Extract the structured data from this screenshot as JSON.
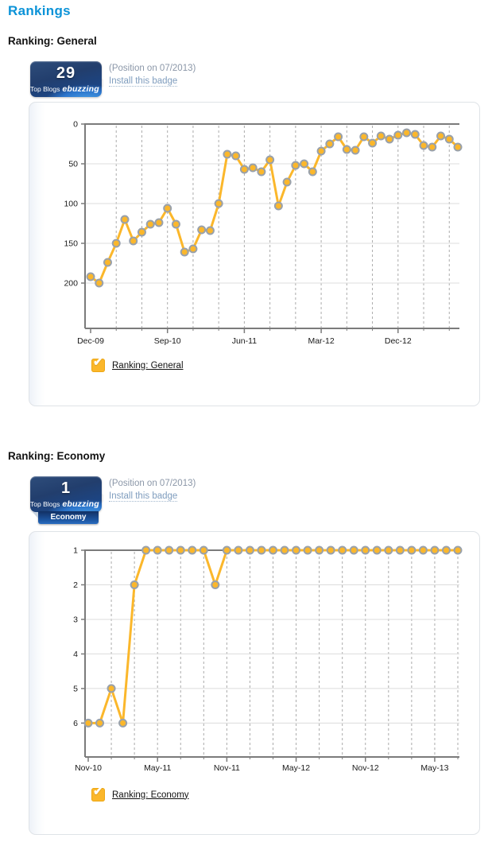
{
  "page": {
    "title": "Rankings"
  },
  "colors": {
    "title_blue": "#0c93d8",
    "line_orange": "#fbb72b",
    "marker_border": "#99a1ab",
    "axis_gray": "#7b7b7b",
    "grid_gray": "#dcdcdc",
    "dash_gray": "#ababab",
    "muted_text": "#8b97a8",
    "link_blue": "#7f9dbe",
    "badge_blue_dark": "#223e6d",
    "badge_blue_bright": "#2b74cb"
  },
  "sections": [
    {
      "heading": "Ranking: General",
      "badge": {
        "value": "29",
        "brand_prefix": "Top Blogs",
        "brand_name": "ebuzzing",
        "tab": null
      },
      "position_note": "(Position on 07/2013)",
      "install_link": "Install this badge"
    },
    {
      "heading": "Ranking: Economy",
      "badge": {
        "value": "1",
        "brand_prefix": "Top Blogs",
        "brand_name": "ebuzzing",
        "tab": "Economy"
      },
      "position_note": "(Position on 07/2013)",
      "install_link": "Install this badge"
    }
  ],
  "chart_data": [
    {
      "type": "line",
      "title": "Ranking: General",
      "legend": "Ranking: General",
      "y_axis_inverted": true,
      "x": [
        "Dec-09",
        "Jan-10",
        "Feb-10",
        "Mar-10",
        "Apr-10",
        "May-10",
        "Jun-10",
        "Jul-10",
        "Aug-10",
        "Sep-10",
        "Oct-10",
        "Nov-10",
        "Dec-10",
        "Jan-11",
        "Feb-11",
        "Mar-11",
        "Apr-11",
        "May-11",
        "Jun-11",
        "Jul-11",
        "Aug-11",
        "Sep-11",
        "Oct-11",
        "Nov-11",
        "Dec-11",
        "Jan-12",
        "Feb-12",
        "Mar-12",
        "Apr-12",
        "May-12",
        "Jun-12",
        "Jul-12",
        "Aug-12",
        "Sep-12",
        "Oct-12",
        "Nov-12",
        "Dec-12",
        "Jan-13",
        "Feb-13",
        "Mar-13",
        "Apr-13",
        "May-13",
        "Jun-13",
        "Jul-13"
      ],
      "values": [
        192,
        200,
        174,
        150,
        120,
        147,
        136,
        126,
        124,
        106,
        126,
        161,
        157,
        133,
        134,
        100,
        38,
        40,
        57,
        55,
        60,
        45,
        103,
        73,
        52,
        50,
        60,
        34,
        25,
        16,
        32,
        33,
        16,
        24,
        15,
        19,
        14,
        11,
        13,
        27,
        29,
        15,
        19,
        29
      ],
      "x_tick_labels": [
        "Dec-09",
        "Sep-10",
        "Jun-11",
        "Mar-12",
        "Dec-12"
      ],
      "x_tick_indices": [
        0,
        9,
        18,
        27,
        36
      ],
      "y_ticks": [
        0,
        50,
        100,
        150,
        200
      ],
      "y_top_value": 0,
      "y_bottom_value": 257,
      "dash_start": 3,
      "dash_step": 3,
      "line_color": "#fbb72b",
      "marker_border": "#99a1ab",
      "grid": "on",
      "legend_position": "bottom-left"
    },
    {
      "type": "line",
      "title": "Ranking: Economy",
      "legend": "Ranking: Economy",
      "y_axis_inverted": true,
      "x": [
        "Nov-10",
        "Dec-10",
        "Jan-11",
        "Feb-11",
        "Mar-11",
        "Apr-11",
        "May-11",
        "Jun-11",
        "Jul-11",
        "Aug-11",
        "Sep-11",
        "Oct-11",
        "Nov-11",
        "Dec-11",
        "Jan-12",
        "Feb-12",
        "Mar-12",
        "Apr-12",
        "May-12",
        "Jun-12",
        "Jul-12",
        "Aug-12",
        "Sep-12",
        "Oct-12",
        "Nov-12",
        "Dec-12",
        "Jan-13",
        "Feb-13",
        "Mar-13",
        "Apr-13",
        "May-13",
        "Jun-13",
        "Jul-13"
      ],
      "values": [
        6,
        6,
        5,
        6,
        2,
        1,
        1,
        1,
        1,
        1,
        1,
        2,
        1,
        1,
        1,
        1,
        1,
        1,
        1,
        1,
        1,
        1,
        1,
        1,
        1,
        1,
        1,
        1,
        1,
        1,
        1,
        1,
        1
      ],
      "x_tick_labels": [
        "Nov-10",
        "May-11",
        "Nov-11",
        "May-12",
        "Nov-12",
        "May-13"
      ],
      "x_tick_indices": [
        0,
        6,
        12,
        18,
        24,
        30
      ],
      "y_ticks": [
        1,
        2,
        3,
        4,
        5,
        6
      ],
      "y_top_value": 1,
      "y_bottom_value": 6.98,
      "dash_start": 2,
      "dash_step": 2,
      "line_color": "#fbb72b",
      "marker_border": "#99a1ab",
      "grid": "on",
      "legend_position": "bottom-left"
    }
  ],
  "chart_style": {
    "axis": "#7b7b7b",
    "grid": "#dcdcdc",
    "dash": "#ababab"
  }
}
